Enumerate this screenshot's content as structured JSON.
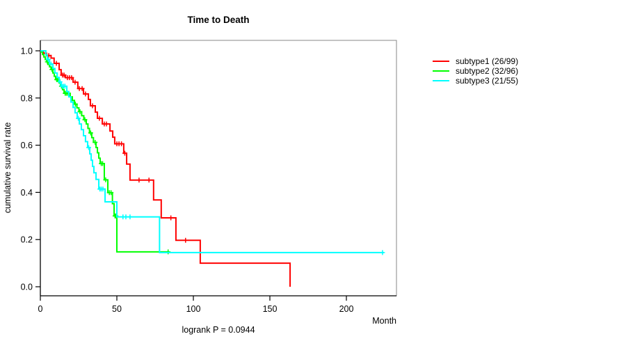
{
  "title": "Time to Death",
  "subtitle": "logrank P = 0.0944",
  "x_axis": {
    "label": "Month",
    "ticks": [
      0,
      50,
      100,
      150,
      200
    ],
    "range": [
      0,
      232
    ]
  },
  "y_axis": {
    "label": "cumulative survival rate",
    "ticks": [
      "1.0",
      "0.8",
      "0.6",
      "0.4",
      "0.2",
      "0.0"
    ],
    "tick_values": [
      1.0,
      0.8,
      0.6,
      0.4,
      0.2,
      0.0
    ],
    "range": [
      0,
      1
    ]
  },
  "legend": [
    {
      "label": "subtype1 (26/99)",
      "color": "#ff0000"
    },
    {
      "label": "subtype2 (32/96)",
      "color": "#00ff00"
    },
    {
      "label": "subtype3 (21/55)",
      "color": "#00ffff"
    }
  ],
  "frame_color": "#878787",
  "axis_color": "#000000",
  "chart_data": {
    "type": "line",
    "subtype": "kaplan-meier-step",
    "title": "Time to Death",
    "xlabel": "Month",
    "ylabel": "cumulative survival rate",
    "annotation": "logrank P = 0.0944",
    "xlim": [
      0,
      232
    ],
    "ylim": [
      0,
      1
    ],
    "grid": false,
    "legend_position": "right-outside",
    "series": [
      {
        "name": "subtype1 (26/99)",
        "color": "#ff0000",
        "end_month": 163.2,
        "points": [
          [
            0,
            1.0
          ],
          [
            2,
            0.99
          ],
          [
            4,
            0.98
          ],
          [
            7,
            0.969
          ],
          [
            9,
            0.947
          ],
          [
            12.3,
            0.92
          ],
          [
            13.6,
            0.897
          ],
          [
            16.4,
            0.886
          ],
          [
            21.4,
            0.867
          ],
          [
            24.5,
            0.84
          ],
          [
            28.2,
            0.817
          ],
          [
            31.4,
            0.794
          ],
          [
            32.7,
            0.767
          ],
          [
            35.9,
            0.74
          ],
          [
            37.3,
            0.714
          ],
          [
            40.5,
            0.69
          ],
          [
            45.5,
            0.66
          ],
          [
            47.3,
            0.634
          ],
          [
            48.6,
            0.606
          ],
          [
            54.5,
            0.566
          ],
          [
            56.4,
            0.52
          ],
          [
            58.6,
            0.452
          ],
          [
            74,
            0.368
          ],
          [
            79,
            0.292
          ],
          [
            88.6,
            0.197
          ],
          [
            104.5,
            0.1
          ],
          [
            163.2,
            0.0
          ]
        ],
        "censors": [
          [
            5.5,
            0.98
          ],
          [
            10.5,
            0.947
          ],
          [
            14.5,
            0.897
          ],
          [
            15.5,
            0.897
          ],
          [
            17.7,
            0.886
          ],
          [
            19,
            0.886
          ],
          [
            20.4,
            0.886
          ],
          [
            22.7,
            0.867
          ],
          [
            25.5,
            0.84
          ],
          [
            27.3,
            0.84
          ],
          [
            29.5,
            0.817
          ],
          [
            34.1,
            0.767
          ],
          [
            38.6,
            0.714
          ],
          [
            41.8,
            0.69
          ],
          [
            43.2,
            0.69
          ],
          [
            50,
            0.606
          ],
          [
            51.4,
            0.606
          ],
          [
            53,
            0.606
          ],
          [
            55.2,
            0.566
          ],
          [
            64.5,
            0.452
          ],
          [
            71,
            0.452
          ],
          [
            85.3,
            0.292
          ],
          [
            94.9,
            0.197
          ]
        ]
      },
      {
        "name": "subtype2 (32/96)",
        "color": "#00ff00",
        "end_month": 84,
        "points": [
          [
            0,
            0.995
          ],
          [
            1.4,
            0.984
          ],
          [
            2.3,
            0.974
          ],
          [
            3.2,
            0.963
          ],
          [
            4.1,
            0.953
          ],
          [
            5,
            0.942
          ],
          [
            6,
            0.932
          ],
          [
            7,
            0.921
          ],
          [
            8.2,
            0.906
          ],
          [
            9.1,
            0.892
          ],
          [
            10,
            0.878
          ],
          [
            12.3,
            0.864
          ],
          [
            13.2,
            0.85
          ],
          [
            14.5,
            0.835
          ],
          [
            15.5,
            0.82
          ],
          [
            19.5,
            0.805
          ],
          [
            20.9,
            0.79
          ],
          [
            22.3,
            0.774
          ],
          [
            23.9,
            0.758
          ],
          [
            25.2,
            0.742
          ],
          [
            27,
            0.725
          ],
          [
            28.4,
            0.708
          ],
          [
            30,
            0.69
          ],
          [
            31.1,
            0.671
          ],
          [
            32.1,
            0.652
          ],
          [
            33.6,
            0.632
          ],
          [
            34.7,
            0.612
          ],
          [
            36.4,
            0.59
          ],
          [
            37.3,
            0.568
          ],
          [
            38.2,
            0.545
          ],
          [
            39.1,
            0.522
          ],
          [
            41.8,
            0.453
          ],
          [
            44.1,
            0.399
          ],
          [
            47.1,
            0.352
          ],
          [
            48.2,
            0.3
          ],
          [
            50,
            0.148
          ]
        ],
        "censors": [
          [
            4.6,
            0.953
          ],
          [
            7.6,
            0.921
          ],
          [
            10.7,
            0.878
          ],
          [
            11.4,
            0.878
          ],
          [
            13.8,
            0.85
          ],
          [
            16.2,
            0.82
          ],
          [
            17,
            0.82
          ],
          [
            17.9,
            0.82
          ],
          [
            22.9,
            0.774
          ],
          [
            25.9,
            0.742
          ],
          [
            29.1,
            0.708
          ],
          [
            32.9,
            0.652
          ],
          [
            35.8,
            0.612
          ],
          [
            39.8,
            0.522
          ],
          [
            40.7,
            0.522
          ],
          [
            42.7,
            0.453
          ],
          [
            45.1,
            0.399
          ],
          [
            46.2,
            0.399
          ],
          [
            48.8,
            0.3
          ],
          [
            49.4,
            0.3
          ],
          [
            83.5,
            0.148
          ]
        ]
      },
      {
        "name": "subtype3 (21/55)",
        "color": "#00ffff",
        "end_month": 224.5,
        "points": [
          [
            0,
            1.0
          ],
          [
            3.6,
            0.982
          ],
          [
            4.5,
            0.963
          ],
          [
            6,
            0.944
          ],
          [
            8.2,
            0.925
          ],
          [
            9.5,
            0.906
          ],
          [
            11,
            0.887
          ],
          [
            12.3,
            0.868
          ],
          [
            13.6,
            0.85
          ],
          [
            17.3,
            0.827
          ],
          [
            18.6,
            0.805
          ],
          [
            20,
            0.783
          ],
          [
            21.4,
            0.76
          ],
          [
            22.7,
            0.737
          ],
          [
            24.1,
            0.714
          ],
          [
            25.5,
            0.69
          ],
          [
            26.8,
            0.666
          ],
          [
            28.2,
            0.64
          ],
          [
            29.5,
            0.615
          ],
          [
            30.9,
            0.59
          ],
          [
            32.3,
            0.563
          ],
          [
            33.2,
            0.536
          ],
          [
            34.1,
            0.51
          ],
          [
            35,
            0.483
          ],
          [
            36.4,
            0.455
          ],
          [
            38.2,
            0.414
          ],
          [
            42.3,
            0.36
          ],
          [
            50,
            0.296
          ],
          [
            77.9,
            0.145
          ]
        ],
        "censors": [
          [
            5.2,
            0.963
          ],
          [
            7,
            0.944
          ],
          [
            12.9,
            0.868
          ],
          [
            14.3,
            0.85
          ],
          [
            15.2,
            0.85
          ],
          [
            16.1,
            0.85
          ],
          [
            24.8,
            0.714
          ],
          [
            31.6,
            0.59
          ],
          [
            38.9,
            0.414
          ],
          [
            39.8,
            0.414
          ],
          [
            40.9,
            0.414
          ],
          [
            54,
            0.296
          ],
          [
            55.9,
            0.296
          ],
          [
            58.6,
            0.296
          ],
          [
            223.6,
            0.145
          ]
        ]
      }
    ]
  }
}
